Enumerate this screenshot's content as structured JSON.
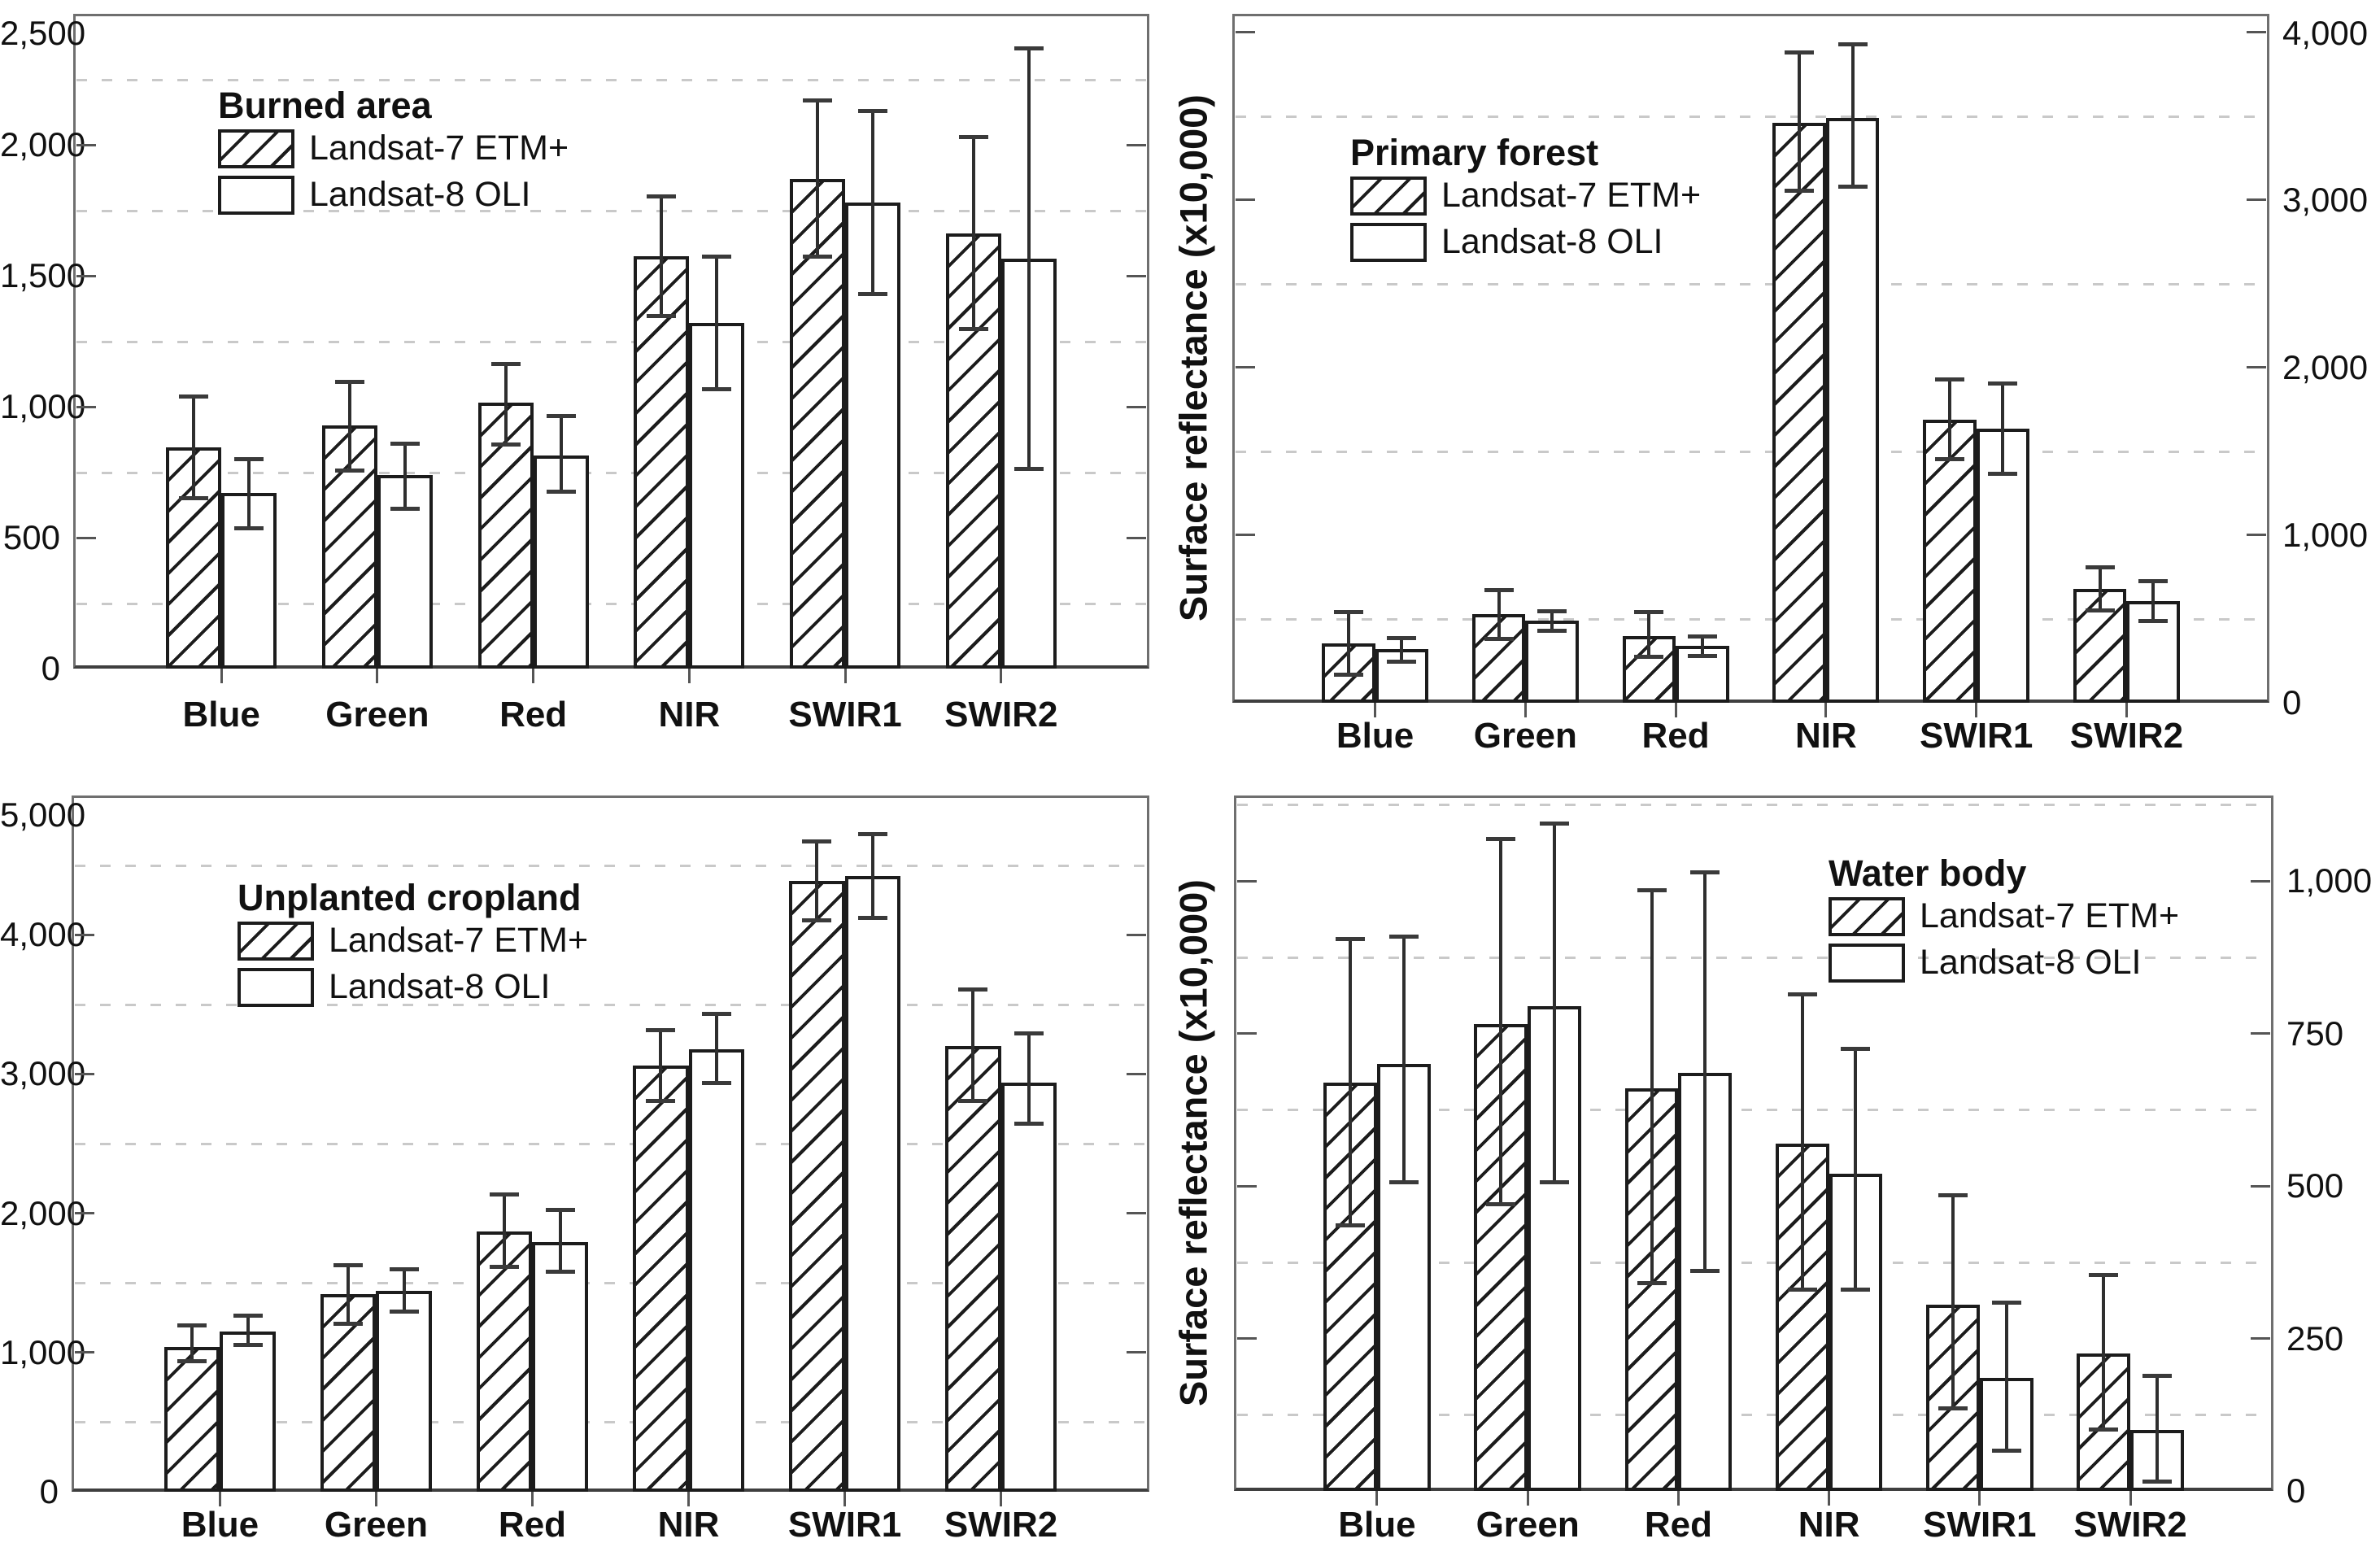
{
  "figure_background": "#ffffff",
  "colors": {
    "frame": "#6f6f6f",
    "axis_line": "#3f3f3f",
    "gridline": "#c9c9c9",
    "bar_border": "#1c1c1c",
    "bar_fill": "#ffffff",
    "hatch_line": "#1c1c1c",
    "error_bar": "#2e2e2e",
    "text": "#111111"
  },
  "chart_data": {
    "type": "bar",
    "grouped": true,
    "error_bars": true,
    "grid": "dashed-horizontal-at-half-ticks",
    "ylabel": "Surface reflectance (x10,000)",
    "categories": [
      "Blue",
      "Green",
      "Red",
      "NIR",
      "SWIR1",
      "SWIR2"
    ],
    "series_names": [
      "Landsat-7 ETM+",
      "Landsat-8 OLI"
    ],
    "panels": [
      {
        "title": "Burned area",
        "axis_side": "left",
        "legend_position": "upper-left",
        "ylim": [
          0,
          2500
        ],
        "tick_step": 500,
        "ytick_labels": [
          "0",
          "500",
          "1,000",
          "1,500",
          "2,000",
          "2,500"
        ],
        "series": [
          {
            "name": "Landsat-7 ETM+",
            "hatched": true,
            "values": [
              845,
              930,
              1015,
              1575,
              1870,
              1660
            ],
            "err_low": [
              650,
              755,
              855,
              1345,
              1570,
              1295
            ],
            "err_high": [
              1040,
              1095,
              1165,
              1805,
              2170,
              2030
            ]
          },
          {
            "name": "Landsat-8 OLI",
            "hatched": false,
            "values": [
              670,
              740,
              815,
              1320,
              1780,
              1565
            ],
            "err_low": [
              535,
              610,
              675,
              1065,
              1430,
              760
            ],
            "err_high": [
              800,
              860,
              965,
              1575,
              2130,
              2370
            ]
          }
        ]
      },
      {
        "title": "Primary forest",
        "axis_side": "right",
        "legend_position": "upper-left",
        "ylim": [
          0,
          4110
        ],
        "tick_step": 1000,
        "ytick_labels": [
          "0",
          "1,000",
          "2,000",
          "3,000",
          "4,000"
        ],
        "series": [
          {
            "name": "Landsat-7 ETM+",
            "hatched": true,
            "values": [
              355,
              530,
              400,
              3460,
              1690,
              680
            ],
            "err_low": [
              165,
              380,
              270,
              3050,
              1450,
              550
            ],
            "err_high": [
              545,
              675,
              545,
              3880,
              1930,
              810
            ]
          },
          {
            "name": "Landsat-8 OLI",
            "hatched": false,
            "values": [
              320,
              490,
              340,
              3490,
              1635,
              605
            ],
            "err_low": [
              245,
              425,
              275,
              3075,
              1365,
              485
            ],
            "err_high": [
              390,
              550,
              400,
              3930,
              1905,
              730
            ]
          }
        ]
      },
      {
        "title": "Unplanted cropland",
        "axis_side": "left",
        "legend_position": "upper-left",
        "ylim": [
          0,
          5000
        ],
        "tick_step": 1000,
        "ytick_labels": [
          "0",
          "1,000",
          "2,000",
          "3,000",
          "4,000",
          "5,000"
        ],
        "series": [
          {
            "name": "Landsat-7 ETM+",
            "hatched": true,
            "values": [
              1040,
              1420,
              1870,
              3060,
              4385,
              3200
            ],
            "err_low": [
              935,
              1205,
              1610,
              2805,
              4100,
              2805
            ],
            "err_high": [
              1200,
              1630,
              2140,
              3320,
              4670,
              3610
            ]
          },
          {
            "name": "Landsat-8 OLI",
            "hatched": false,
            "values": [
              1150,
              1440,
              1795,
              3175,
              4420,
              2940
            ],
            "err_low": [
              1050,
              1290,
              1580,
              2935,
              4120,
              2640
            ],
            "err_high": [
              1265,
              1600,
              2025,
              3435,
              4725,
              3295
            ]
          }
        ]
      },
      {
        "title": "Water body",
        "axis_side": "right",
        "legend_position": "upper-right",
        "ylim": [
          0,
          1140
        ],
        "tick_step": 250,
        "ytick_labels": [
          "0",
          "250",
          "500",
          "750",
          "1,000"
        ],
        "series": [
          {
            "name": "Landsat-7 ETM+",
            "hatched": true,
            "values": [
              670,
              765,
              660,
              570,
              305,
              225
            ],
            "err_low": [
              435,
              470,
              340,
              330,
              135,
              100
            ],
            "err_high": [
              905,
              1070,
              985,
              815,
              485,
              355
            ]
          },
          {
            "name": "Landsat-8 OLI",
            "hatched": false,
            "values": [
              700,
              795,
              685,
              520,
              185,
              100
            ],
            "err_low": [
              505,
              505,
              360,
              330,
              65,
              15
            ],
            "err_high": [
              910,
              1095,
              1015,
              725,
              310,
              190
            ]
          }
        ]
      }
    ]
  }
}
